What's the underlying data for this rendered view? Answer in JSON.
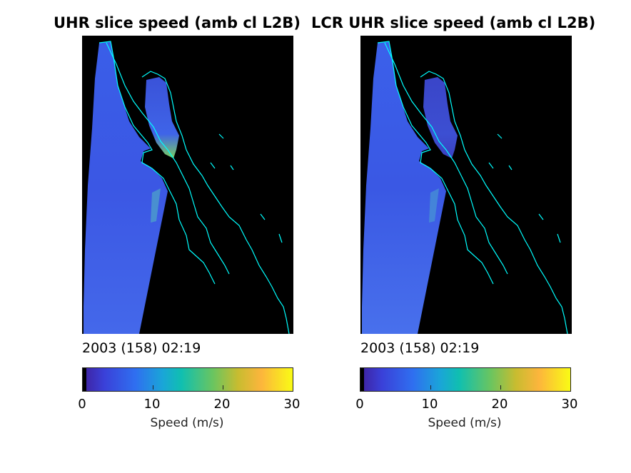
{
  "panels": [
    {
      "title": "UHR slice speed (amb cl L2B)",
      "timestamp": "2003 (158) 02:19",
      "colorbar": {
        "label": "Speed (m/s)",
        "ticks": [
          "0",
          "10",
          "20",
          "30"
        ],
        "range": [
          0,
          30
        ],
        "colors": [
          "#000000",
          "#3e26a8",
          "#2f6ff0",
          "#1aa5d8",
          "#10bfb0",
          "#6ac560",
          "#c8bc30",
          "#fcb53c",
          "#f9fb15"
        ]
      },
      "swath_speed_ms": 6,
      "gulf_speed_ms": 7,
      "coastline_color": "#00ffff"
    },
    {
      "title": "LCR UHR slice speed (amb cl L2B)",
      "timestamp": "2003 (158) 02:19",
      "colorbar": {
        "label": "Speed (m/s)",
        "ticks": [
          "0",
          "10",
          "20",
          "30"
        ],
        "range": [
          0,
          30
        ],
        "colors": [
          "#000000",
          "#3e26a8",
          "#2f6ff0",
          "#1aa5d8",
          "#10bfb0",
          "#6ac560",
          "#c8bc30",
          "#fcb53c",
          "#f9fb15"
        ]
      },
      "swath_speed_ms": 6,
      "gulf_speed_ms": 5,
      "coastline_color": "#00ffff"
    }
  ]
}
